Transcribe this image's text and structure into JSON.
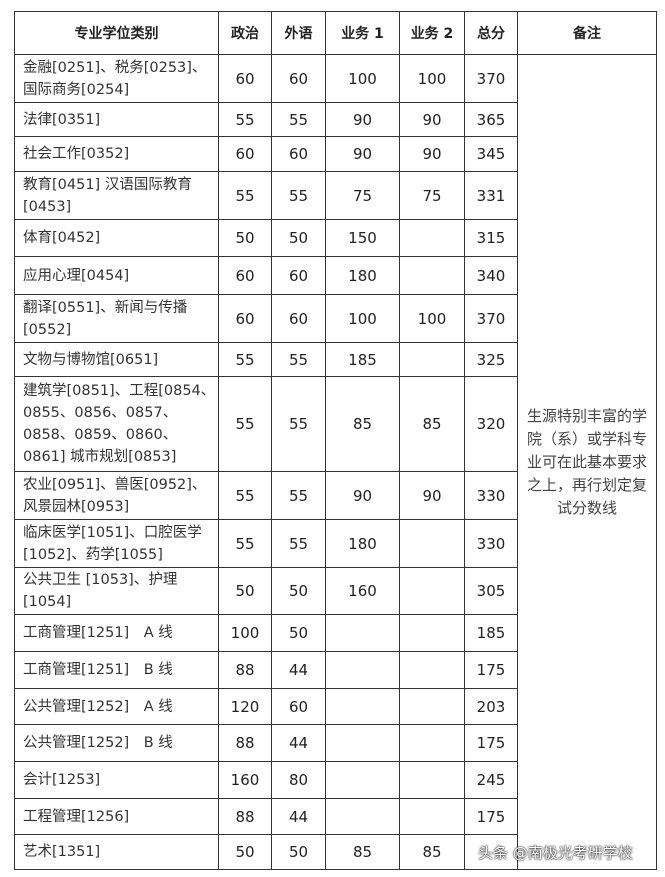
{
  "headers": [
    "专业学位类别",
    "政治",
    "外语",
    "业务 1",
    "业务 2",
    "总分",
    "备注"
  ],
  "rows": [
    {
      "name": "金融[0251]、税务[0253]、国际商务[0254]",
      "politics": "60",
      "language": "60",
      "subject1": "100",
      "subject2": "100",
      "total": "370"
    },
    {
      "name": "法律[0351]",
      "politics": "55",
      "language": "55",
      "subject1": "90",
      "subject2": "90",
      "total": "365"
    },
    {
      "name": "社会工作[0352]",
      "politics": "60",
      "language": "60",
      "subject1": "90",
      "subject2": "90",
      "total": "345"
    },
    {
      "name": "教育[0451] 汉语国际教育[0453]",
      "politics": "55",
      "language": "55",
      "subject1": "75",
      "subject2": "75",
      "total": "331"
    },
    {
      "name": "体育[0452]",
      "politics": "50",
      "language": "50",
      "subject1": "150",
      "subject2": "",
      "total": "315"
    },
    {
      "name": "应用心理[0454]",
      "politics": "60",
      "language": "60",
      "subject1": "180",
      "subject2": "",
      "total": "340"
    },
    {
      "name": "翻译[0551]、新闻与传播[0552]",
      "politics": "60",
      "language": "60",
      "subject1": "100",
      "subject2": "100",
      "total": "370"
    },
    {
      "name": "文物与博物馆[0651]",
      "politics": "55",
      "language": "55",
      "subject1": "185",
      "subject2": "",
      "total": "325"
    },
    {
      "name": "建筑学[0851]、工程[0854、0855、0856、0857、0858、0859、0860、0861] 城市规划[0853]",
      "politics": "55",
      "language": "55",
      "subject1": "85",
      "subject2": "85",
      "total": "320"
    },
    {
      "name": "农业[0951]、兽医[0952]、风景园林[0953]",
      "politics": "55",
      "language": "55",
      "subject1": "90",
      "subject2": "90",
      "total": "330"
    },
    {
      "name": "临床医学[1051]、口腔医学[1052]、药学[1055]",
      "politics": "55",
      "language": "55",
      "subject1": "180",
      "subject2": "",
      "total": "330"
    },
    {
      "name": "公共卫生 [1053]、护理[1054]",
      "politics": "50",
      "language": "50",
      "subject1": "160",
      "subject2": "",
      "total": "305"
    },
    {
      "name": "工商管理[1251]　A 线",
      "politics": "100",
      "language": "50",
      "subject1": "",
      "subject2": "",
      "total": "185"
    },
    {
      "name": "工商管理[1251]　B 线",
      "politics": "88",
      "language": "44",
      "subject1": "",
      "subject2": "",
      "total": "175"
    },
    {
      "name": "公共管理[1252]　A 线",
      "politics": "120",
      "language": "60",
      "subject1": "",
      "subject2": "",
      "total": "203"
    },
    {
      "name": "公共管理[1252]　B 线",
      "politics": "88",
      "language": "44",
      "subject1": "",
      "subject2": "",
      "total": "175"
    },
    {
      "name": "会计[1253]",
      "politics": "160",
      "language": "80",
      "subject1": "",
      "subject2": "",
      "total": "245"
    },
    {
      "name": "工程管理[1256]",
      "politics": "88",
      "language": "44",
      "subject1": "",
      "subject2": "",
      "total": "175"
    },
    {
      "name": "艺术[1351]",
      "politics": "50",
      "language": "50",
      "subject1": "85",
      "subject2": "85",
      "total": ""
    }
  ],
  "note": "生源特别丰富的学院（系）或学科专业可在此基本要求之上，再行划定复试分数线",
  "watermark": "头条 @南极光考研学校"
}
